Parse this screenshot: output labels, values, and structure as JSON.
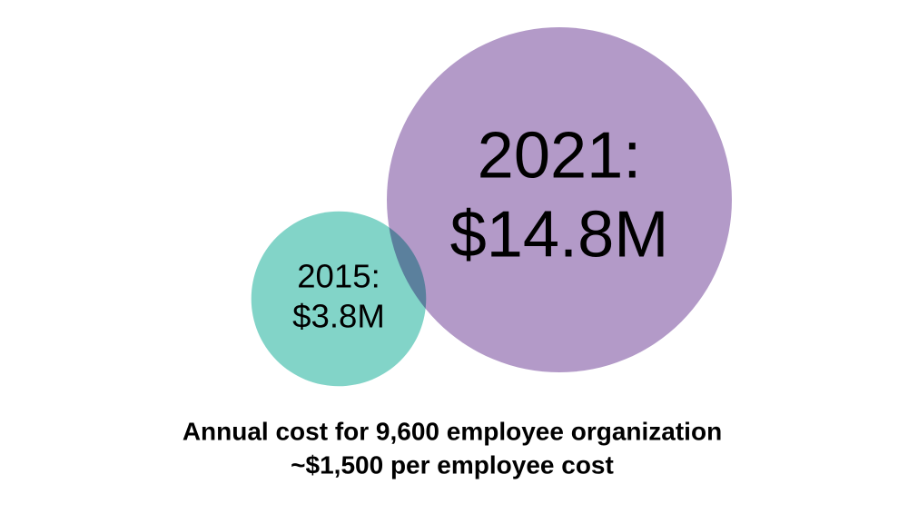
{
  "chart_data": {
    "type": "bubble",
    "categories": [
      "2015:",
      "2021:"
    ],
    "values": [
      3.8,
      14.8
    ],
    "value_labels": [
      "$3.8M",
      "$14.8M"
    ],
    "colors": [
      "#82d4c8",
      "#b39ac8"
    ],
    "annotations": [
      "Annual cost for 9,600 employee organization",
      "~$1,500 per employee cost"
    ]
  }
}
